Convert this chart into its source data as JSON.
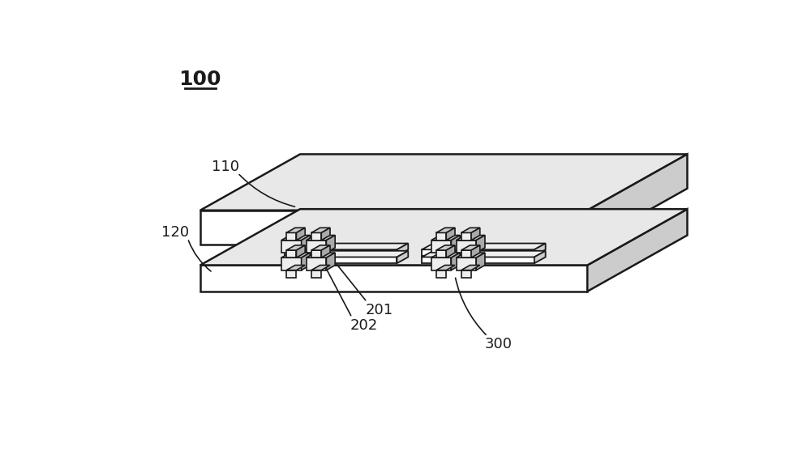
{
  "bg_color": "#ffffff",
  "line_color": "#1a1a1a",
  "fill_light": "#eeeeee",
  "fill_mid": "#cccccc",
  "fill_dark": "#aaaaaa",
  "fill_white": "#ffffff",
  "fill_top": "#e8e8e8",
  "label_100": "100",
  "label_110": "110",
  "label_120": "120",
  "label_201": "201",
  "label_202": "202",
  "label_300": "300",
  "label_fontsize": 13,
  "title_fontsize": 18
}
